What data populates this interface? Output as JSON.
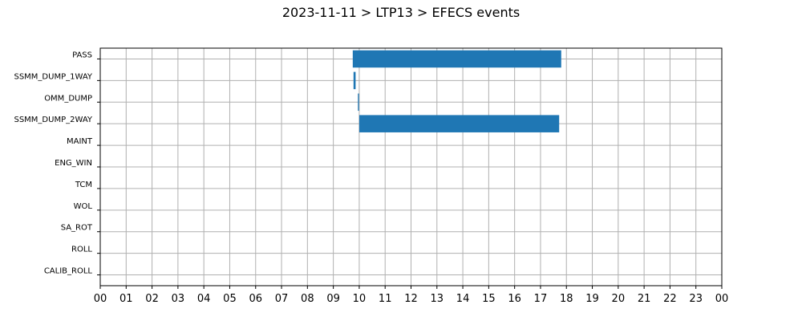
{
  "chart_data": {
    "type": "bar",
    "orientation": "horizontal-timeline",
    "title": "2023-11-11 > LTP13 > EFECS events",
    "xlabel": "",
    "ylabel": "",
    "xlim": [
      0,
      24
    ],
    "x_ticks": [
      "00",
      "01",
      "02",
      "03",
      "04",
      "05",
      "06",
      "07",
      "08",
      "09",
      "10",
      "11",
      "12",
      "13",
      "14",
      "15",
      "16",
      "17",
      "18",
      "19",
      "20",
      "21",
      "22",
      "23",
      "00"
    ],
    "categories": [
      "PASS",
      "SSMM_DUMP_1WAY",
      "OMM_DUMP",
      "SSMM_DUMP_2WAY",
      "MAINT",
      "ENG_WIN",
      "TCM",
      "WOL",
      "SA_ROT",
      "ROLL",
      "CALIB_ROLL"
    ],
    "grid": true,
    "bar_color": "#1f77b4",
    "events": [
      {
        "category": "PASS",
        "start": 9.75,
        "end": 17.8
      },
      {
        "category": "SSMM_DUMP_1WAY",
        "start": 9.78,
        "end": 9.86
      },
      {
        "category": "OMM_DUMP",
        "start": 9.95,
        "end": 9.99
      },
      {
        "category": "SSMM_DUMP_2WAY",
        "start": 10.0,
        "end": 17.72
      }
    ]
  }
}
